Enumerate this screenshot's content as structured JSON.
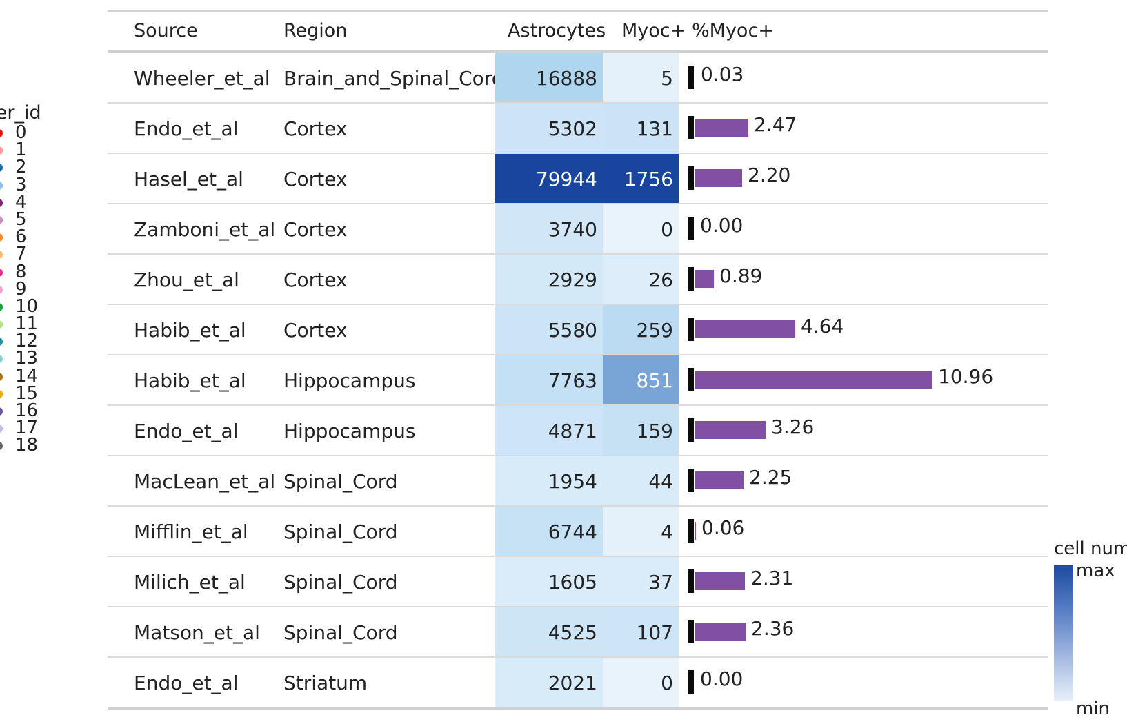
{
  "legend": {
    "title": "uster_id",
    "items": [
      {
        "label": "0",
        "color": "#e31a1c"
      },
      {
        "label": "1",
        "color": "#fb9a99"
      },
      {
        "label": "2",
        "color": "#1f63b0"
      },
      {
        "label": "3",
        "color": "#8fbce6"
      },
      {
        "label": "4",
        "color": "#7b2a6e"
      },
      {
        "label": "5",
        "color": "#c58fc0"
      },
      {
        "label": "6",
        "color": "#f08a24"
      },
      {
        "label": "7",
        "color": "#fdbf6f"
      },
      {
        "label": "8",
        "color": "#e7298a"
      },
      {
        "label": "9",
        "color": "#f4a6cf"
      },
      {
        "label": "10",
        "color": "#1b9e3e"
      },
      {
        "label": "11",
        "color": "#b2df8a"
      },
      {
        "label": "12",
        "color": "#2b8c9c"
      },
      {
        "label": "13",
        "color": "#8fd3cf"
      },
      {
        "label": "14",
        "color": "#a6761d"
      },
      {
        "label": "15",
        "color": "#e6ab02"
      },
      {
        "label": "16",
        "color": "#6a51a3"
      },
      {
        "label": "17",
        "color": "#bcbddc"
      },
      {
        "label": "18",
        "color": "#666666"
      }
    ]
  },
  "scale": {
    "title": "cell num",
    "max_label": "max",
    "min_label": "min",
    "max_color": "#1d4aa0",
    "min_color": "#e8f0fa"
  },
  "chart_data": {
    "type": "table",
    "columns": [
      "Source",
      "Region",
      "Astrocytes",
      "Myoc+",
      "%Myoc+"
    ],
    "rows": [
      {
        "source": "Wheeler_et_al",
        "region": "Brain_and_Spinal_Cord",
        "astrocytes": 16888,
        "myoc": 5,
        "pct": 0.03,
        "pct_label": "0.03"
      },
      {
        "source": "Endo_et_al",
        "region": "Cortex",
        "astrocytes": 5302,
        "myoc": 131,
        "pct": 2.47,
        "pct_label": "2.47"
      },
      {
        "source": "Hasel_et_al",
        "region": "Cortex",
        "astrocytes": 79944,
        "myoc": 1756,
        "pct": 2.2,
        "pct_label": "2.20"
      },
      {
        "source": "Zamboni_et_al",
        "region": "Cortex",
        "astrocytes": 3740,
        "myoc": 0,
        "pct": 0.0,
        "pct_label": "0.00"
      },
      {
        "source": "Zhou_et_al",
        "region": "Cortex",
        "astrocytes": 2929,
        "myoc": 26,
        "pct": 0.89,
        "pct_label": "0.89"
      },
      {
        "source": "Habib_et_al",
        "region": "Cortex",
        "astrocytes": 5580,
        "myoc": 259,
        "pct": 4.64,
        "pct_label": "4.64"
      },
      {
        "source": "Habib_et_al",
        "region": "Hippocampus",
        "astrocytes": 7763,
        "myoc": 851,
        "pct": 10.96,
        "pct_label": "10.96"
      },
      {
        "source": "Endo_et_al",
        "region": "Hippocampus",
        "astrocytes": 4871,
        "myoc": 159,
        "pct": 3.26,
        "pct_label": "3.26"
      },
      {
        "source": "MacLean_et_al",
        "region": "Spinal_Cord",
        "astrocytes": 1954,
        "myoc": 44,
        "pct": 2.25,
        "pct_label": "2.25"
      },
      {
        "source": "Mifflin_et_al",
        "region": "Spinal_Cord",
        "astrocytes": 6744,
        "myoc": 4,
        "pct": 0.06,
        "pct_label": "0.06"
      },
      {
        "source": "Milich_et_al",
        "region": "Spinal_Cord",
        "astrocytes": 1605,
        "myoc": 37,
        "pct": 2.31,
        "pct_label": "2.31"
      },
      {
        "source": "Matson_et_al",
        "region": "Spinal_Cord",
        "astrocytes": 4525,
        "myoc": 107,
        "pct": 2.36,
        "pct_label": "2.36"
      },
      {
        "source": "Endo_et_al",
        "region": "Striatum",
        "astrocytes": 2021,
        "myoc": 0,
        "pct": 0.0,
        "pct_label": "0.00"
      }
    ],
    "bar_color": "#8150a5"
  }
}
